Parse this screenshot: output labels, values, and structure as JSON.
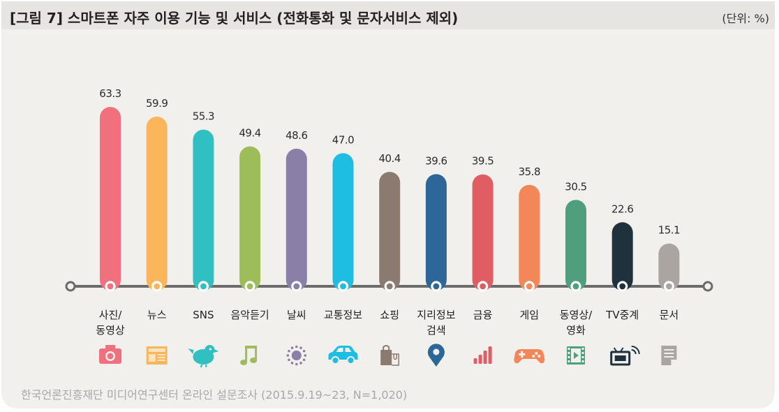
{
  "header": {
    "title": "[그림 7]  스마트폰 자주 이용 기능 및 서비스 (전화통화 및 문자서비스 제외)",
    "unit": "(단위: %)"
  },
  "footer": {
    "source": "한국언론진흥재단 미디어연구센터 온라인 설문조사 (2015.9.19~23, N=1,020)"
  },
  "chart_data": {
    "type": "bar",
    "title": "[그림 7]  스마트폰 자주 이용 기능 및 서비스 (전화통화 및 문자서비스 제외)",
    "unit": "%",
    "xlabel": "",
    "ylabel": "",
    "ylim": [
      0,
      70
    ],
    "grid": false,
    "legend": "none",
    "categories": [
      [
        "사진/",
        "동영상"
      ],
      [
        "뉴스"
      ],
      [
        "SNS"
      ],
      [
        "음악듣기"
      ],
      [
        "날씨"
      ],
      [
        "교통정보"
      ],
      [
        "쇼핑"
      ],
      [
        "지리정보",
        "검색"
      ],
      [
        "금융"
      ],
      [
        "게임"
      ],
      [
        "동영상/",
        "영화"
      ],
      [
        "TV중계"
      ],
      [
        "문서"
      ]
    ],
    "values": [
      63.3,
      59.9,
      55.3,
      49.4,
      48.6,
      47.0,
      40.4,
      39.6,
      39.5,
      35.8,
      30.5,
      22.6,
      15.1
    ],
    "value_labels": [
      "63.3",
      "59.9",
      "55.3",
      "49.4",
      "48.6",
      "47.0",
      "40.4",
      "39.6",
      "39.5",
      "35.8",
      "30.5",
      "22.6",
      "15.1"
    ],
    "colors": [
      "#f0717d",
      "#fbb65b",
      "#31c0c1",
      "#9dbd5a",
      "#8a7fa6",
      "#1ebde2",
      "#8b7a70",
      "#2d6698",
      "#e05d64",
      "#f4875a",
      "#4f9e7c",
      "#1e313d",
      "#aaa5a1"
    ],
    "icons": [
      "camera-icon",
      "newspaper-icon",
      "bird-icon",
      "music-note-icon",
      "sun-icon",
      "car-icon",
      "shopping-bag-icon",
      "map-pin-icon",
      "signal-bars-icon",
      "gamepad-icon",
      "film-icon",
      "tv-icon",
      "document-icon"
    ]
  }
}
